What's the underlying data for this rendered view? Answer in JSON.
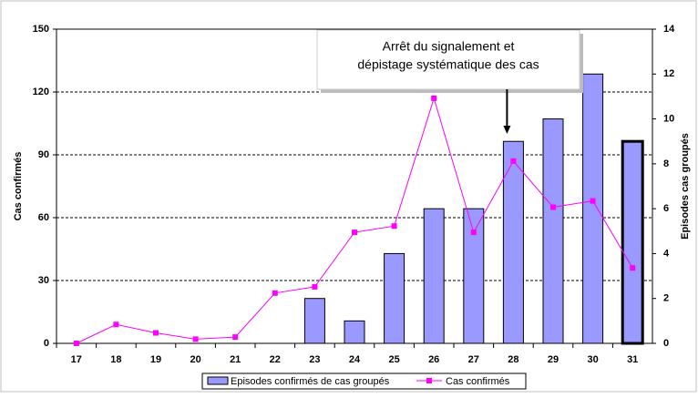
{
  "chart_data": {
    "type": "bar-line",
    "categories": [
      "17",
      "18",
      "19",
      "20",
      "21",
      "22",
      "23",
      "24",
      "25",
      "26",
      "27",
      "28",
      "29",
      "30",
      "31"
    ],
    "series": [
      {
        "name": "Episodes confirmés de cas groupés",
        "type": "bar",
        "axis": "y2",
        "color": "#9999ff",
        "values": [
          null,
          null,
          null,
          null,
          null,
          null,
          2,
          1,
          4,
          6,
          6,
          9,
          10,
          12,
          9
        ],
        "highlight_index": 14
      },
      {
        "name": "Cas confirmés",
        "type": "line",
        "axis": "y",
        "color": "#ff00ff",
        "values": [
          0,
          9,
          5,
          2,
          3,
          24,
          27,
          53,
          56,
          117,
          53,
          87,
          65,
          68,
          36
        ]
      }
    ],
    "ylabel": "Cas confirmés",
    "y2label": "Episodes cas groupés",
    "ylim": [
      0,
      150
    ],
    "yticks": [
      0,
      30,
      60,
      90,
      120,
      150
    ],
    "y2lim": [
      0,
      14
    ],
    "y2ticks": [
      0,
      2,
      4,
      6,
      8,
      10,
      12,
      14
    ],
    "grid": true,
    "legend": "bottom",
    "annotation": {
      "lines": [
        "Arrêt du signalement et",
        "dépistage systématique des cas"
      ],
      "category_index": 11
    }
  }
}
